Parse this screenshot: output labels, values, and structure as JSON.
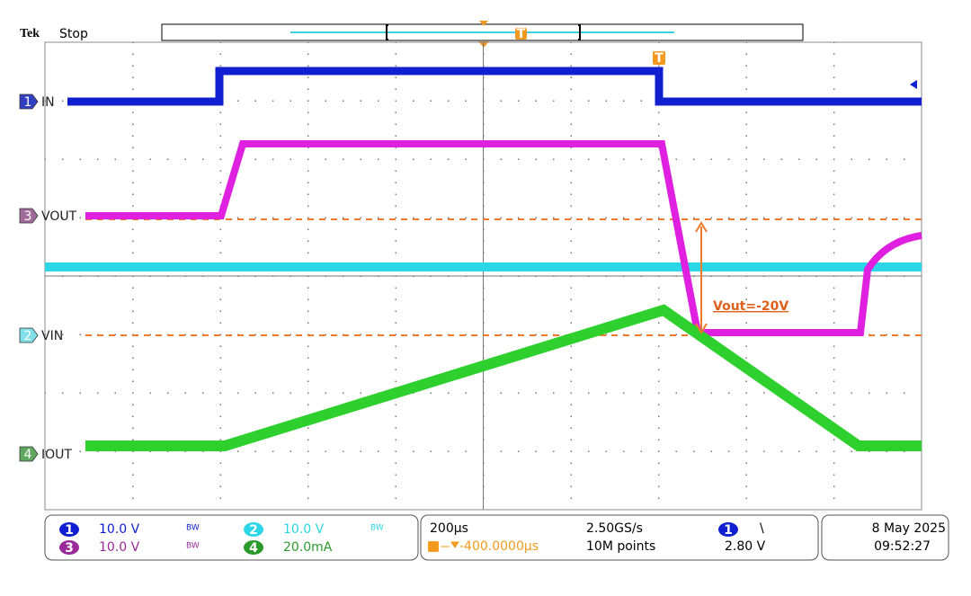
{
  "header": {
    "brand": "Tek",
    "status": "Stop",
    "trigger_marker": "T"
  },
  "channels": [
    {
      "number": "1",
      "label": "IN"
    },
    {
      "number": "3",
      "label": "VOUT"
    },
    {
      "number": "2",
      "label": "VIN"
    },
    {
      "number": "4",
      "label": "IOUT"
    }
  ],
  "annotation": "Vout=-20V",
  "trigger_position_marker": "T",
  "settings": {
    "ch1": {
      "number": "1",
      "scale": "10.0 V",
      "bw": "BW"
    },
    "ch3": {
      "number": "3",
      "scale": "10.0 V",
      "bw": "BW"
    },
    "ch2": {
      "number": "2",
      "scale": "10.0 V",
      "bw": "BW"
    },
    "ch4": {
      "number": "4",
      "scale": "20.0mA"
    }
  },
  "horizontal": {
    "time_per_div": "200µs",
    "sample_rate": "2.50GS/s",
    "delay": "-400.0000µs",
    "record_length": "10M points"
  },
  "trigger": {
    "source": "1",
    "slope": "\\",
    "level": "2.80 V"
  },
  "datetime": {
    "date": "8 May 2025",
    "time": "09:52:27"
  }
}
